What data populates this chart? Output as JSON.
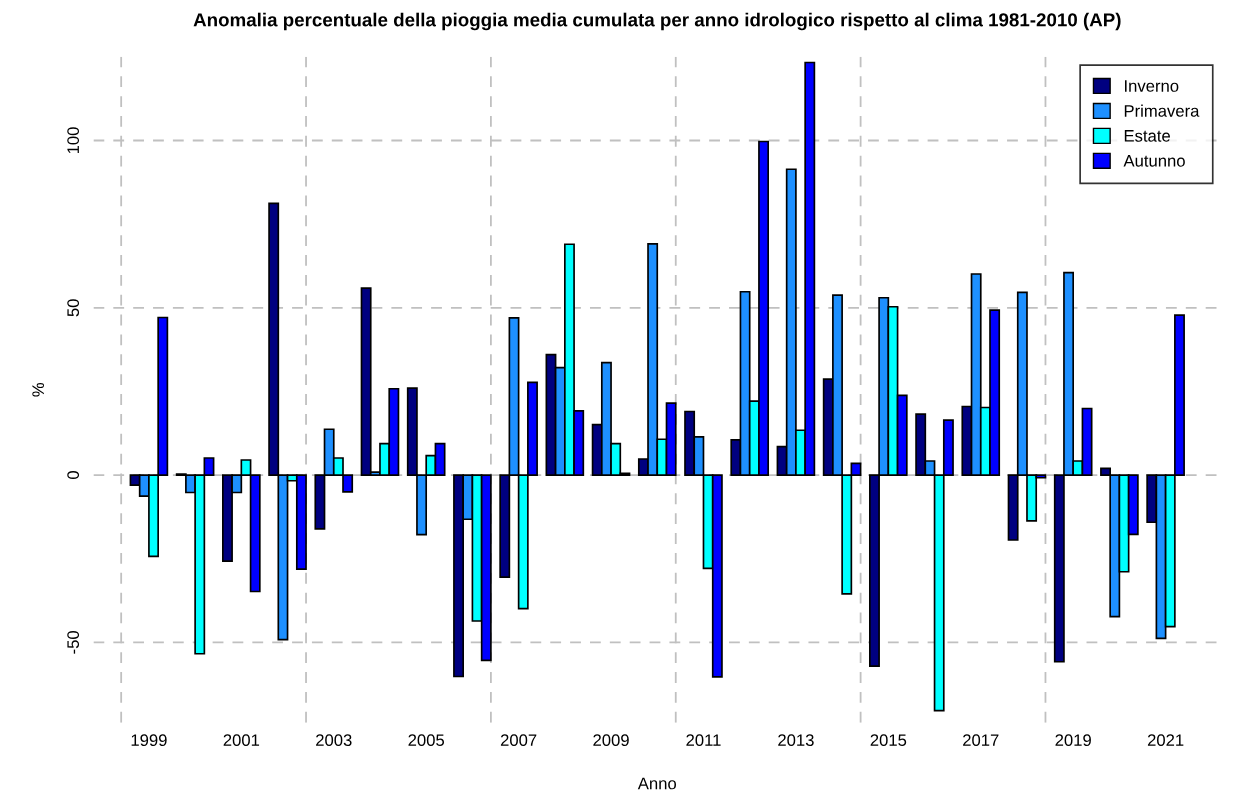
{
  "chart_data": {
    "type": "bar",
    "title": "Anomalia percentuale della pioggia media cumulata per anno idrologico rispetto al clima 1981-2010 (AP)",
    "xlabel": "Anno",
    "ylabel": "%",
    "x": [
      1999,
      2000,
      2001,
      2002,
      2003,
      2004,
      2005,
      2006,
      2007,
      2008,
      2009,
      2010,
      2011,
      2012,
      2013,
      2014,
      2015,
      2016,
      2017,
      2018,
      2019,
      2020,
      2021
    ],
    "series": [
      {
        "name": "Inverno",
        "color": "#000080",
        "values": [
          -3,
          0.3,
          -25.7,
          81.2,
          -16.1,
          55.9,
          26,
          -60.2,
          -30.5,
          36,
          15.1,
          4.8,
          19,
          10.5,
          8.5,
          28.7,
          -57.1,
          18.2,
          20.5,
          -19.4,
          -55.8,
          2,
          -14.1
        ]
      },
      {
        "name": "Primavera",
        "color": "#1e90ff",
        "values": [
          -6.3,
          -5.2,
          -5.2,
          -49.2,
          13.7,
          0.9,
          -17.8,
          -13.2,
          47,
          32.1,
          33.6,
          69.1,
          11.4,
          54.8,
          91.4,
          53.8,
          53,
          4.2,
          60.1,
          54.6,
          60.5,
          -42.3,
          -48.8
        ]
      },
      {
        "name": "Estate",
        "color": "#00ffff",
        "values": [
          -24.3,
          -53.4,
          4.5,
          -1.7,
          5.1,
          9.4,
          5.8,
          -43.6,
          -39.9,
          69,
          9.4,
          10.7,
          -27.9,
          22.1,
          13.4,
          -35.5,
          50.3,
          -70.4,
          20.2,
          -13.7,
          4.2,
          -28.9,
          -45.3
        ]
      },
      {
        "name": "Autunno",
        "color": "#0000ff",
        "values": [
          47.1,
          5.1,
          -34.8,
          -28.1,
          -5,
          25.8,
          9.4,
          -55.4,
          27.7,
          19.2,
          0.5,
          21.5,
          -60.3,
          99.7,
          123.3,
          3.5,
          23.8,
          16.4,
          49.3,
          -0.8,
          19.9,
          -17.7,
          47.8
        ]
      }
    ],
    "xlim": [
      1997.8,
      2022.2
    ],
    "xticks": [
      1999,
      2001,
      2003,
      2005,
      2007,
      2009,
      2011,
      2013,
      2015,
      2017,
      2019,
      2021
    ],
    "ylim": [
      -74,
      125
    ],
    "yticks": [
      -50,
      0,
      50,
      100
    ],
    "ref_lines": [
      {
        "axis": "x",
        "value": 1998.4,
        "color": "#c0c0c0",
        "line_style": "dashed"
      },
      {
        "axis": "x",
        "value": 2002.4,
        "color": "#c0c0c0",
        "line_style": "dashed"
      },
      {
        "axis": "x",
        "value": 2006.4,
        "color": "#c0c0c0",
        "line_style": "dashed"
      },
      {
        "axis": "x",
        "value": 2010.4,
        "color": "#c0c0c0",
        "line_style": "dashed"
      },
      {
        "axis": "x",
        "value": 2014.4,
        "color": "#c0c0c0",
        "line_style": "dashed"
      },
      {
        "axis": "x",
        "value": 2018.4,
        "color": "#c0c0c0",
        "line_style": "dashed"
      }
    ],
    "grid": "y",
    "legend": "top right"
  }
}
